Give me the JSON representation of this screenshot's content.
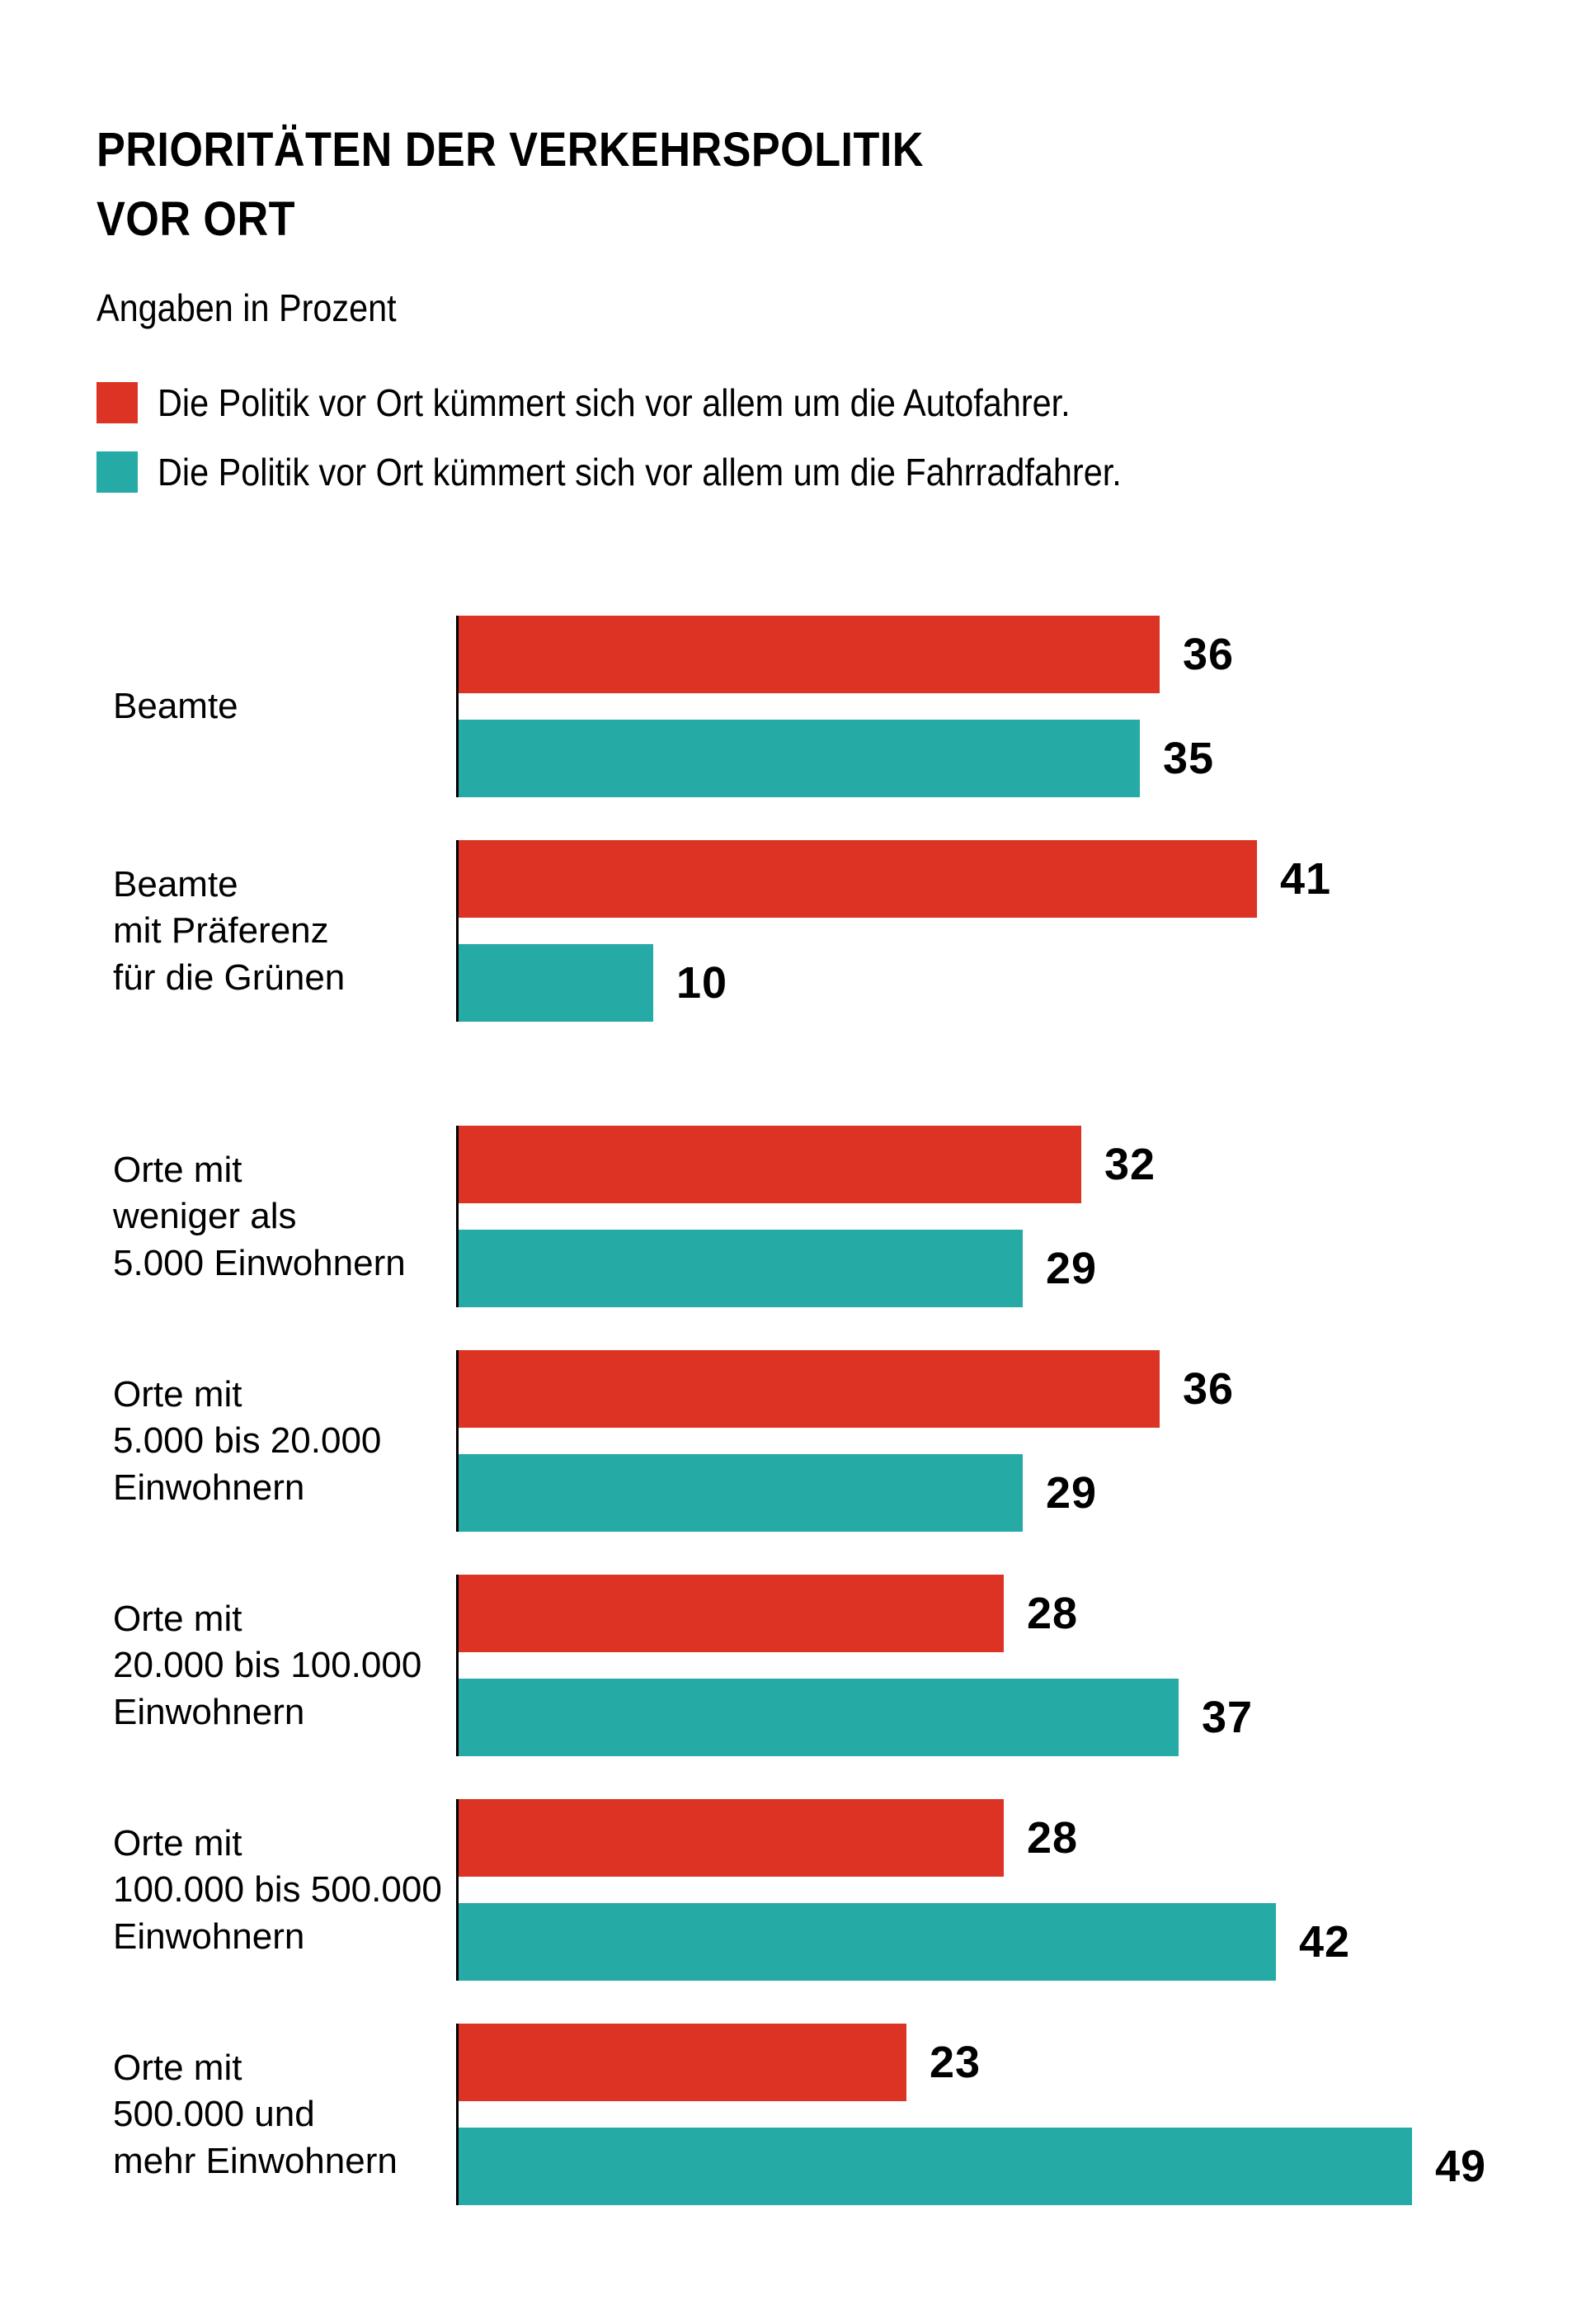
{
  "title": {
    "line1": "PRIORITÄTEN DER VERKEHRSPOLITIK",
    "line2": "VOR ORT"
  },
  "subtitle": "Angaben in Prozent",
  "colors": {
    "autofahrer_red": "#dd3324",
    "fahrradfahrer_teal": "#26aaa5",
    "axis_black": "#000000"
  },
  "chart_data": {
    "type": "bar",
    "orientation": "horizontal",
    "value_unit": "Prozent",
    "xlim": [
      0,
      50
    ],
    "grid": false,
    "value_labels_shown": true,
    "legend_position": "top",
    "series": [
      {
        "key": "autofahrer",
        "label": "Die Politik vor Ort kümmert sich vor allem um die Autofahrer.",
        "color": "#dd3324"
      },
      {
        "key": "fahrradfahrer",
        "label": "Die Politik vor Ort kümmert sich vor allem um die Fahrradfahrer.",
        "color": "#26aaa5"
      }
    ],
    "groups": [
      {
        "label": "Beamte",
        "autofahrer": 36,
        "fahrradfahrer": 35
      },
      {
        "label": "Beamte\nmit Präferenz\nfür die Grünen",
        "autofahrer": 41,
        "fahrradfahrer": 10
      },
      {
        "label": "Orte mit\nweniger als\n5.000 Einwohnern",
        "autofahrer": 32,
        "fahrradfahrer": 29
      },
      {
        "label": "Orte mit\n5.000 bis 20.000\nEinwohnern",
        "autofahrer": 36,
        "fahrradfahrer": 29
      },
      {
        "label": "Orte mit\n20.000 bis 100.000\nEinwohnern",
        "autofahrer": 28,
        "fahrradfahrer": 37
      },
      {
        "label": "Orte mit\n100.000 bis 500.000\nEinwohnern",
        "autofahrer": 28,
        "fahrradfahrer": 42
      },
      {
        "label": "Orte mit\n500.000 und\nmehr Einwohnern",
        "autofahrer": 23,
        "fahrradfahrer": 49
      }
    ]
  }
}
